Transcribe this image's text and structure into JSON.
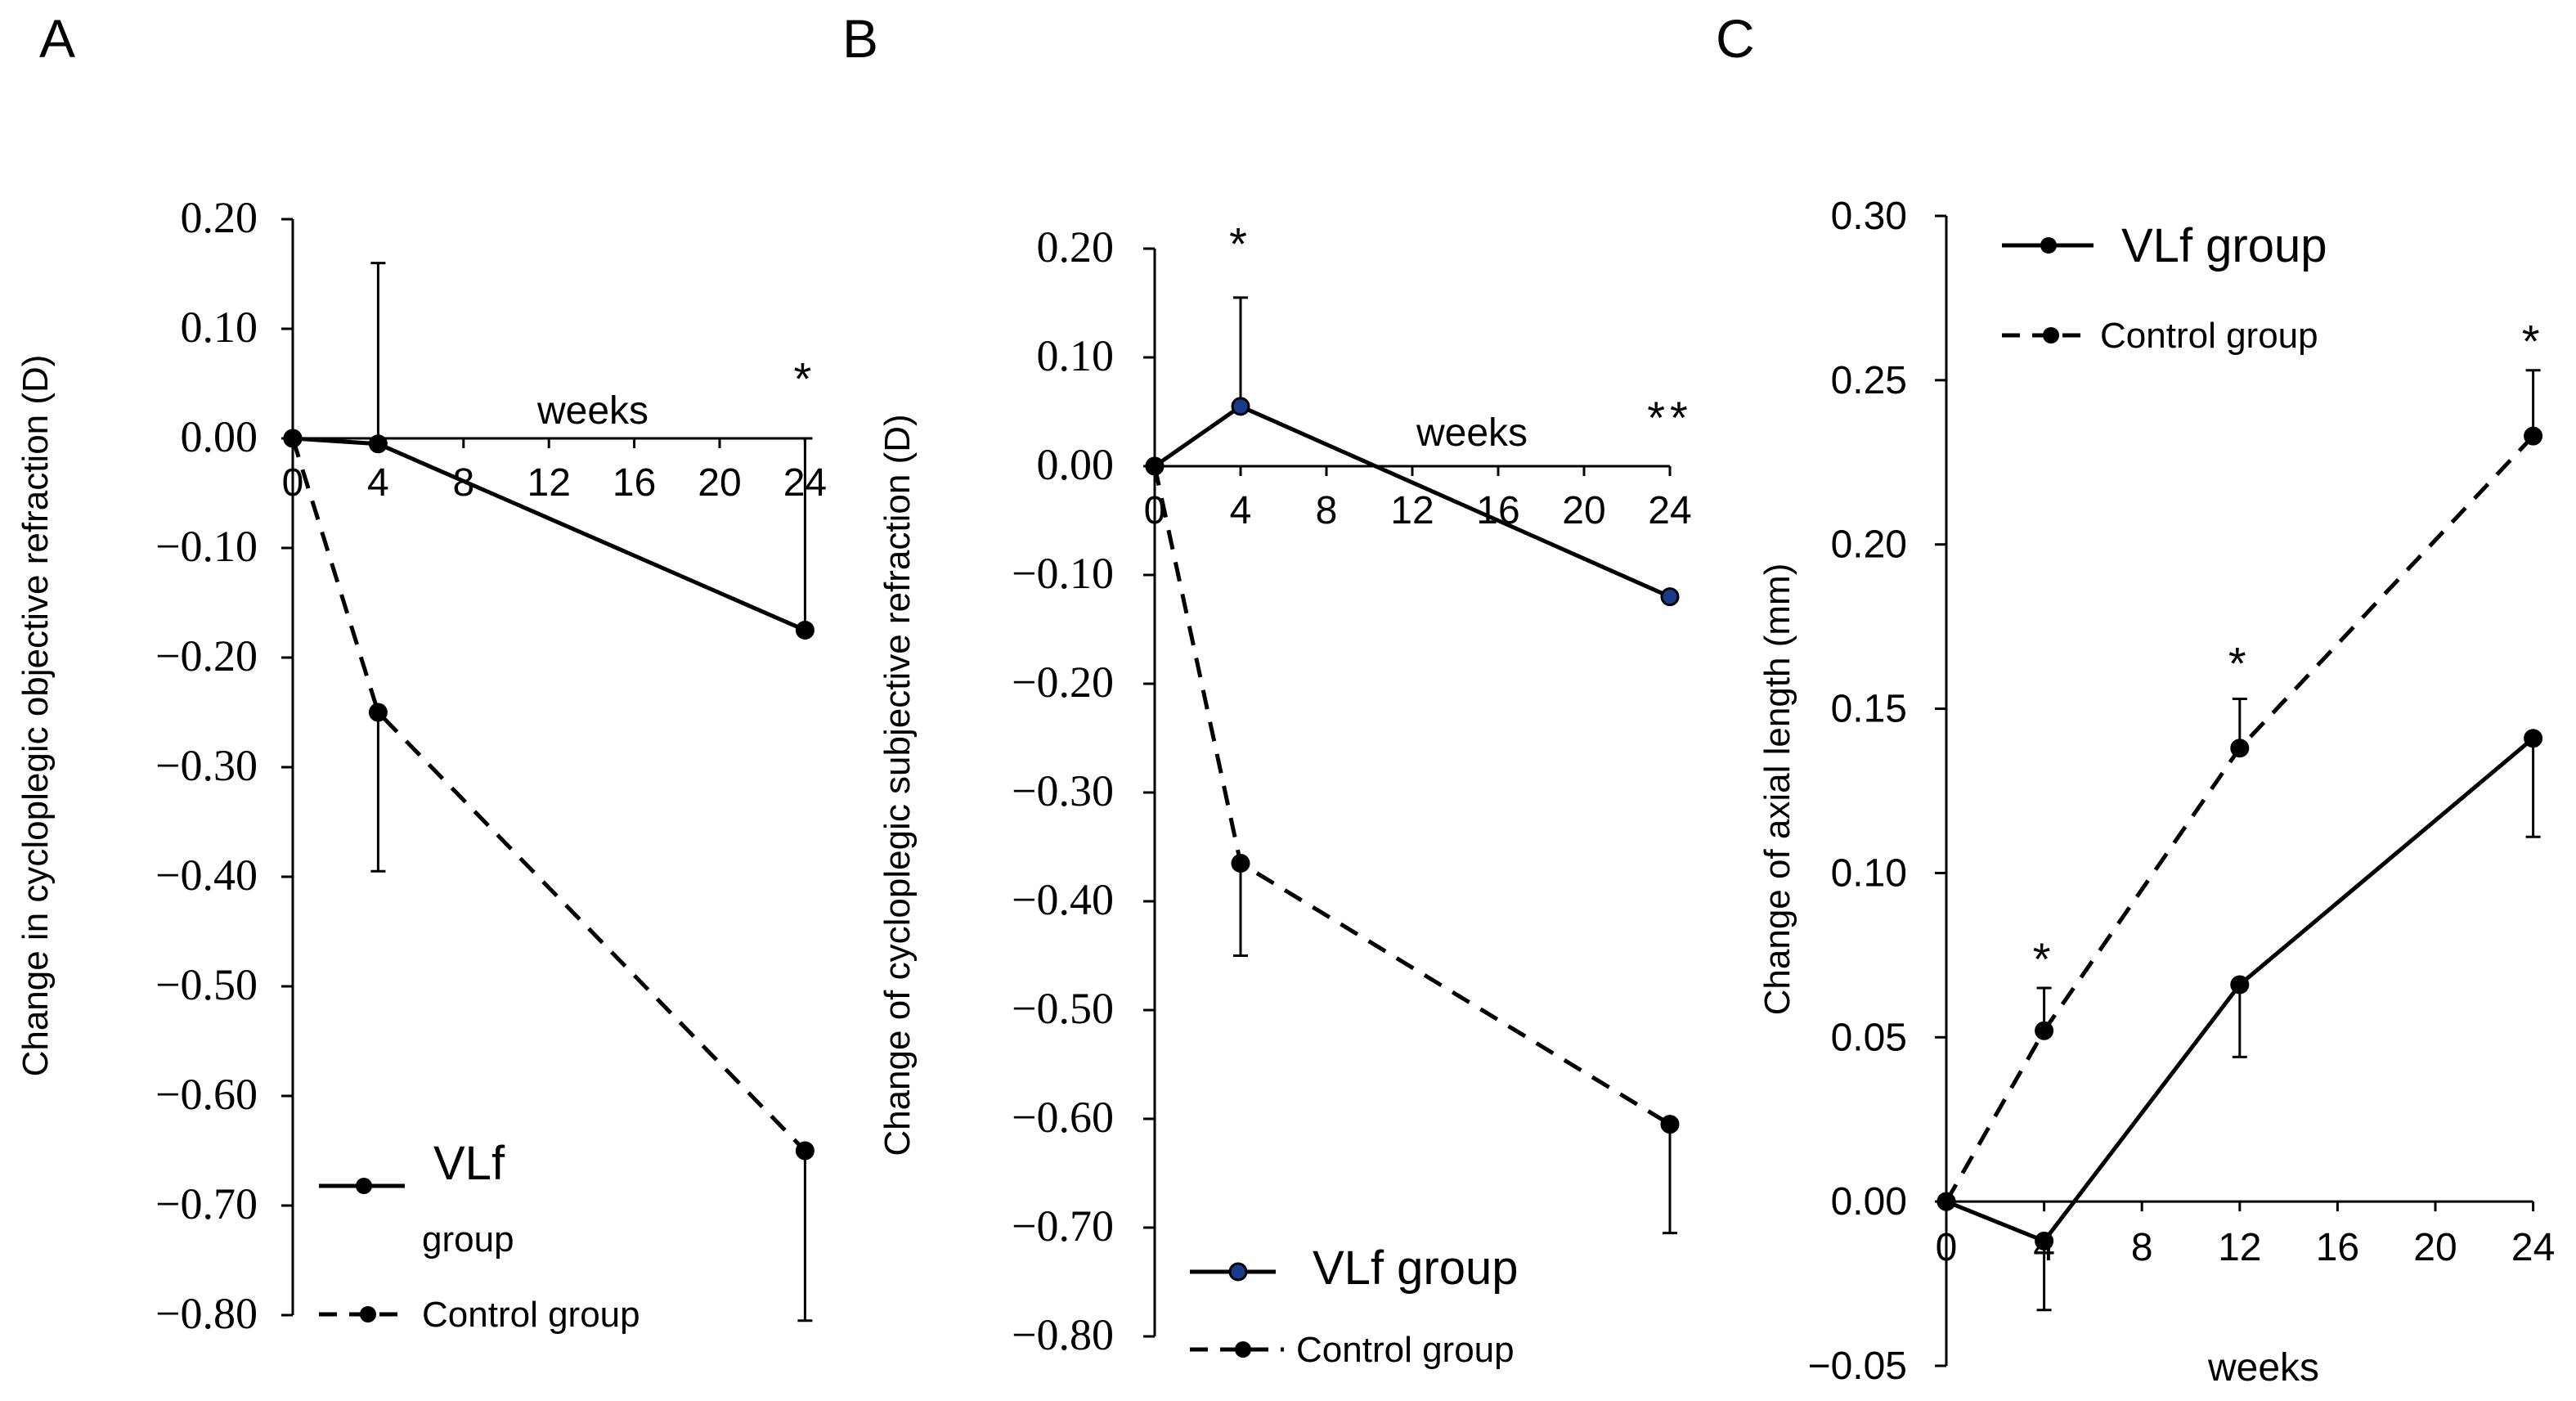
{
  "colors": {
    "line": "#000000",
    "marker_fill": "#000000",
    "vlf_marker_b": "#1a3a8a",
    "background": "#ffffff"
  },
  "chart_data": [
    {
      "type": "line",
      "panel_label": "A",
      "ylabel": "Change in cycloplegic objective refraction (D)",
      "xlabel": "weeks",
      "ylim": [
        -0.8,
        0.2
      ],
      "y_ticks": [
        "0.20",
        "0.10",
        "0.00",
        "−0.10",
        "−0.20",
        "−0.30",
        "−0.40",
        "−0.50",
        "−0.60",
        "−0.70",
        "−0.80"
      ],
      "x_ticks": [
        "0",
        "4",
        "8",
        "12",
        "16",
        "20",
        "24"
      ],
      "series": [
        {
          "name": "VLf group",
          "style": "solid",
          "x": [
            0,
            4,
            24
          ],
          "y": [
            0.0,
            -0.005,
            -0.175
          ],
          "err_upper": [
            0,
            0.165,
            0.175
          ],
          "err_lower": [
            0,
            0,
            0
          ]
        },
        {
          "name": "Control group",
          "style": "dashed",
          "x": [
            0,
            4,
            24
          ],
          "y": [
            0.0,
            -0.25,
            -0.65
          ],
          "err_upper": [
            0,
            0,
            0
          ],
          "err_lower": [
            0,
            0.145,
            0.155
          ]
        }
      ],
      "annotations": [
        {
          "text": "*",
          "x": 24,
          "y": 0.055
        }
      ],
      "legend": {
        "vlf_line1": "VLf",
        "vlf_line2": "group",
        "control": "Control group"
      }
    },
    {
      "type": "line",
      "panel_label": "B",
      "ylabel": "Change of cycloplegic subjective refraction (D)",
      "xlabel": "weeks",
      "ylim": [
        -0.8,
        0.2
      ],
      "y_ticks": [
        "0.20",
        "0.10",
        "0.00",
        "−0.10",
        "−0.20",
        "−0.30",
        "−0.40",
        "−0.50",
        "−0.60",
        "−0.70",
        "−0.80"
      ],
      "x_ticks": [
        "0",
        "4",
        "8",
        "12",
        "16",
        "20",
        "24"
      ],
      "series": [
        {
          "name": "VLf group",
          "style": "solid",
          "x": [
            0,
            4,
            24
          ],
          "y": [
            0.0,
            0.055,
            -0.12
          ],
          "err_upper": [
            0,
            0.1,
            0
          ],
          "err_lower": [
            0,
            0,
            0
          ]
        },
        {
          "name": "Control group",
          "style": "dashed",
          "x": [
            0,
            4,
            24
          ],
          "y": [
            0.0,
            -0.365,
            -0.605
          ],
          "err_upper": [
            0,
            0,
            0
          ],
          "err_lower": [
            0,
            0.085,
            0.1
          ]
        }
      ],
      "annotations": [
        {
          "text": "*",
          "x": 4,
          "y": 0.205
        },
        {
          "text": "**",
          "x": 24,
          "y": 0.045
        }
      ],
      "legend": {
        "vlf": "VLf group",
        "control": "Control group"
      }
    },
    {
      "type": "line",
      "panel_label": "C",
      "ylabel": "Change of axial length (mm)",
      "xlabel": "weeks",
      "ylim": [
        -0.05,
        0.3
      ],
      "y_ticks": [
        "0.30",
        "0.25",
        "0.20",
        "0.15",
        "0.10",
        "0.05",
        "0.00",
        "−0.05"
      ],
      "x_ticks": [
        "0",
        "4",
        "8",
        "12",
        "16",
        "20",
        "24"
      ],
      "series": [
        {
          "name": "VLf group",
          "style": "solid",
          "x": [
            0,
            4,
            12,
            24
          ],
          "y": [
            0.0,
            -0.012,
            0.066,
            0.141
          ],
          "err_upper": [
            0,
            0,
            0,
            0
          ],
          "err_lower": [
            0,
            0.021,
            0.022,
            0.03
          ]
        },
        {
          "name": "Control group",
          "style": "dashed",
          "x": [
            0,
            4,
            12,
            24
          ],
          "y": [
            0.0,
            0.052,
            0.138,
            0.233
          ],
          "err_upper": [
            0,
            0.013,
            0.015,
            0.02
          ],
          "err_lower": [
            0,
            0,
            0,
            0
          ]
        }
      ],
      "annotations": [
        {
          "text": "*",
          "x": 4,
          "y": 0.074
        },
        {
          "text": "*",
          "x": 12,
          "y": 0.164
        },
        {
          "text": "*",
          "x": 24,
          "y": 0.262
        }
      ],
      "legend": {
        "vlf": "VLf group",
        "control": "Control group"
      }
    }
  ]
}
